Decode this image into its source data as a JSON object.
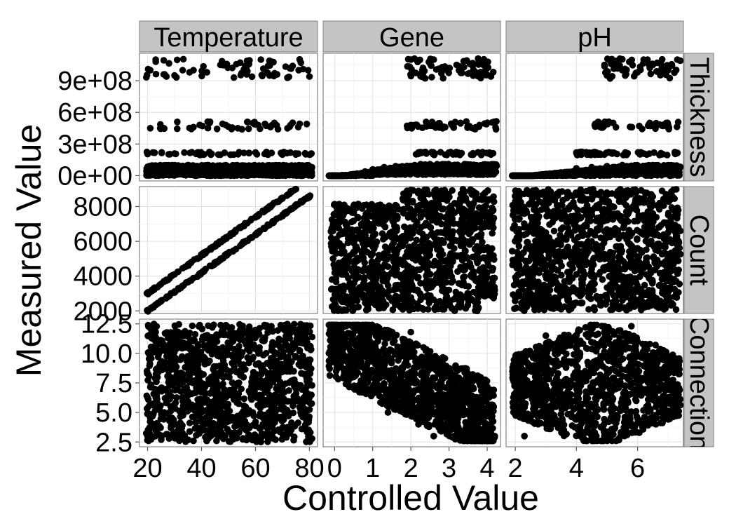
{
  "chart_data": {
    "type": "scatter",
    "layout": "facet_grid",
    "xlabel": "Controlled Value",
    "ylabel": "Measured Value",
    "columns": [
      {
        "name": "Temperature",
        "xlim": [
          17,
          83
        ],
        "ticks": [
          20,
          40,
          60,
          80
        ],
        "tick_labels": [
          "20",
          "40",
          "60",
          "80"
        ]
      },
      {
        "name": "Gene",
        "xlim": [
          -0.3,
          4.35
        ],
        "ticks": [
          0,
          1,
          2,
          3,
          4
        ],
        "tick_labels": [
          "0",
          "1",
          "2",
          "3",
          "4"
        ]
      },
      {
        "name": "pH",
        "xlim": [
          1.7,
          7.5
        ],
        "ticks": [
          2,
          4,
          6
        ],
        "tick_labels": [
          "2",
          "4",
          "6"
        ]
      }
    ],
    "rows": [
      {
        "name": "Thickness",
        "ylim": [
          -50000000,
          1160000000
        ],
        "ticks": [
          0,
          300000000,
          600000000,
          900000000
        ],
        "tick_labels": [
          "0e+00",
          "3e+08",
          "6e+08",
          "9e+08"
        ]
      },
      {
        "name": "Count",
        "ylim": [
          1850,
          9150
        ],
        "ticks": [
          2000,
          4000,
          6000,
          8000
        ],
        "tick_labels": [
          "2000",
          "4000",
          "6000",
          "8000"
        ]
      },
      {
        "name": "Connection",
        "ylim": [
          2.1,
          12.9
        ],
        "ticks": [
          2.5,
          5.0,
          7.5,
          10.0,
          12.5
        ],
        "tick_labels": [
          "2.5",
          "5.0",
          "7.5",
          "10.0",
          "12.5"
        ]
      }
    ],
    "panels": [
      {
        "row": "Thickness",
        "column": "Temperature",
        "description": "horizontal bands",
        "points": [
          [
            21,
            1000000000.0
          ],
          [
            23,
            1100000000.0
          ],
          [
            26,
            960000000.0
          ],
          [
            30,
            950000000.0
          ],
          [
            33,
            1000000000.0
          ],
          [
            37,
            1000000000.0
          ],
          [
            42,
            980000000.0
          ],
          [
            47,
            1050000000.0
          ],
          [
            52,
            930000000.0
          ],
          [
            57,
            990000000.0
          ],
          [
            62,
            1100000000.0
          ],
          [
            68,
            960000000.0
          ],
          [
            72,
            930000000.0
          ],
          [
            76,
            1000000000.0
          ],
          [
            80,
            940000000.0
          ],
          [
            21,
            450000000.0
          ],
          [
            26,
            450000000.0
          ],
          [
            31,
            510000000.0
          ],
          [
            37,
            460000000.0
          ],
          [
            43,
            500000000.0
          ],
          [
            49,
            480000000.0
          ],
          [
            55,
            440000000.0
          ],
          [
            61,
            480000000.0
          ],
          [
            67,
            500000000.0
          ],
          [
            73,
            480000000.0
          ],
          [
            79,
            490000000.0
          ],
          [
            22,
            220000000.0
          ],
          [
            30,
            210000000.0
          ],
          [
            40,
            200000000.0
          ],
          [
            52,
            200000000.0
          ],
          [
            60,
            220000000.0
          ],
          [
            70,
            200000000.0
          ],
          [
            80,
            200000000.0
          ],
          [
            20,
            80000000.0
          ],
          [
            25,
            60000000.0
          ],
          [
            30,
            90000000.0
          ],
          [
            35,
            40000000.0
          ],
          [
            40,
            70000000.0
          ],
          [
            45,
            10000000.0
          ],
          [
            50,
            80000000.0
          ],
          [
            55,
            50000000.0
          ],
          [
            60,
            90000000.0
          ],
          [
            65,
            30000000.0
          ],
          [
            70,
            70000000.0
          ],
          [
            75,
            50000000.0
          ],
          [
            80,
            80000000.0
          ],
          [
            22,
            20000000.0
          ],
          [
            38,
            0
          ],
          [
            57,
            10000000.0
          ],
          [
            77,
            0
          ]
        ]
      },
      {
        "row": "Thickness",
        "column": "Gene",
        "description": "rises with gene",
        "points": [
          [
            -0.1,
            0
          ],
          [
            0.2,
            5000000.0
          ],
          [
            0.5,
            10000000.0
          ],
          [
            0.8,
            40000000.0
          ],
          [
            1.0,
            60000000.0
          ],
          [
            1.3,
            80000000.0
          ],
          [
            1.6,
            90000000.0
          ],
          [
            1.8,
            70000000.0
          ],
          [
            2.1,
            100000000.0
          ],
          [
            2.5,
            80000000.0
          ],
          [
            3.0,
            100000000.0
          ],
          [
            3.5,
            90000000.0
          ],
          [
            4.0,
            100000000.0
          ],
          [
            4.2,
            80000000.0
          ],
          [
            2.2,
            220000000.0
          ],
          [
            2.6,
            200000000.0
          ],
          [
            3.0,
            220000000.0
          ],
          [
            3.6,
            200000000.0
          ],
          [
            4.1,
            200000000.0
          ],
          [
            2.0,
            480000000.0
          ],
          [
            2.4,
            510000000.0
          ],
          [
            2.9,
            460000000.0
          ],
          [
            3.3,
            500000000.0
          ],
          [
            3.8,
            480000000.0
          ],
          [
            4.2,
            500000000.0
          ],
          [
            2.0,
            1100000000.0
          ],
          [
            2.3,
            1000000000.0
          ],
          [
            2.8,
            970000000.0
          ],
          [
            3.2,
            1050000000.0
          ],
          [
            3.7,
            980000000.0
          ],
          [
            4.1,
            940000000.0
          ],
          [
            2.6,
            1100000000.0
          ],
          [
            3.9,
            1050000000.0
          ]
        ]
      },
      {
        "row": "Thickness",
        "column": "pH",
        "description": "rises with pH",
        "points": [
          [
            2.0,
            0
          ],
          [
            2.5,
            0
          ],
          [
            3.0,
            10000000.0
          ],
          [
            3.5,
            30000000.0
          ],
          [
            4.0,
            70000000.0
          ],
          [
            4.5,
            80000000.0
          ],
          [
            5.0,
            90000000.0
          ],
          [
            5.5,
            100000000.0
          ],
          [
            6.0,
            90000000.0
          ],
          [
            6.5,
            100000000.0
          ],
          [
            7.0,
            90000000.0
          ],
          [
            7.3,
            80000000.0
          ],
          [
            4.0,
            220000000.0
          ],
          [
            4.8,
            200000000.0
          ],
          [
            5.6,
            220000000.0
          ],
          [
            6.3,
            200000000.0
          ],
          [
            4.6,
            480000000.0
          ],
          [
            5.2,
            500000000.0
          ],
          [
            5.8,
            460000000.0
          ],
          [
            6.4,
            500000000.0
          ],
          [
            7.0,
            480000000.0
          ],
          [
            5.0,
            950000000.0
          ],
          [
            5.5,
            1000000000.0
          ],
          [
            6.0,
            980000000.0
          ],
          [
            6.5,
            1050000000.0
          ],
          [
            7.0,
            1000000000.0
          ],
          [
            7.3,
            1100000000.0
          ],
          [
            6.2,
            1100000000.0
          ]
        ]
      },
      {
        "row": "Count",
        "column": "Temperature",
        "description": "two parallel linear bands",
        "points": [
          [
            20,
            2000
          ],
          [
            25,
            2550
          ],
          [
            30,
            3100
          ],
          [
            35,
            3650
          ],
          [
            40,
            4200
          ],
          [
            45,
            4750
          ],
          [
            50,
            5300
          ],
          [
            55,
            5850
          ],
          [
            60,
            6400
          ],
          [
            65,
            6950
          ],
          [
            70,
            7500
          ],
          [
            75,
            8050
          ],
          [
            80,
            8600
          ],
          [
            20,
            3000
          ],
          [
            25,
            3550
          ],
          [
            30,
            4100
          ],
          [
            35,
            4650
          ],
          [
            40,
            5200
          ],
          [
            45,
            5750
          ],
          [
            50,
            6300
          ],
          [
            55,
            6850
          ],
          [
            60,
            7400
          ],
          [
            65,
            7950
          ],
          [
            70,
            8500
          ],
          [
            75,
            9000
          ]
        ]
      },
      {
        "row": "Count",
        "column": "Gene",
        "description": "block of scattered points",
        "points": [
          [
            0.1,
            2100
          ],
          [
            0.3,
            7900
          ],
          [
            0.6,
            5000
          ],
          [
            0.9,
            3000
          ],
          [
            1.2,
            8100
          ],
          [
            1.5,
            4200
          ],
          [
            1.8,
            6300
          ],
          [
            2.0,
            2300
          ],
          [
            2.2,
            8900
          ],
          [
            2.5,
            5200
          ],
          [
            2.8,
            7000
          ],
          [
            3.0,
            3200
          ],
          [
            3.3,
            6500
          ],
          [
            3.6,
            8700
          ],
          [
            3.9,
            4500
          ],
          [
            4.1,
            7400
          ],
          [
            0.4,
            3600
          ],
          [
            1.0,
            6900
          ],
          [
            1.6,
            2600
          ],
          [
            2.4,
            3700
          ],
          [
            3.1,
            4900
          ],
          [
            3.7,
            2500
          ],
          [
            4.0,
            8400
          ],
          [
            2.7,
            8000
          ]
        ]
      },
      {
        "row": "Count",
        "column": "pH",
        "description": "cloud of scattered points",
        "points": [
          [
            2.0,
            8300
          ],
          [
            2.5,
            3000
          ],
          [
            3.0,
            6500
          ],
          [
            3.5,
            2100
          ],
          [
            4.0,
            7200
          ],
          [
            4.5,
            4400
          ],
          [
            5.0,
            8800
          ],
          [
            5.5,
            2600
          ],
          [
            6.0,
            5600
          ],
          [
            6.5,
            7600
          ],
          [
            7.0,
            3900
          ],
          [
            7.3,
            6100
          ],
          [
            2.2,
            5000
          ],
          [
            3.2,
            8600
          ],
          [
            4.2,
            3500
          ],
          [
            4.8,
            6200
          ],
          [
            5.8,
            3000
          ],
          [
            6.8,
            8900
          ],
          [
            3.8,
            5400
          ],
          [
            5.2,
            4700
          ]
        ]
      },
      {
        "row": "Connection",
        "column": "Temperature",
        "description": "uniform noise",
        "points": [
          [
            20,
            3.0
          ],
          [
            23,
            11.8
          ],
          [
            26,
            7.0
          ],
          [
            29,
            4.5
          ],
          [
            32,
            10.5
          ],
          [
            35,
            5.5
          ],
          [
            38,
            9.0
          ],
          [
            41,
            3.5
          ],
          [
            44,
            12.2
          ],
          [
            47,
            6.3
          ],
          [
            50,
            8.0
          ],
          [
            53,
            4.0
          ],
          [
            56,
            11.0
          ],
          [
            59,
            5.0
          ],
          [
            62,
            7.7
          ],
          [
            65,
            3.2
          ],
          [
            68,
            10.0
          ],
          [
            71,
            6.0
          ],
          [
            74,
            12.3
          ],
          [
            77,
            4.8
          ],
          [
            80,
            8.6
          ],
          [
            28,
            2.8
          ],
          [
            46,
            9.8
          ],
          [
            64,
            5.8
          ],
          [
            79,
            11.2
          ]
        ]
      },
      {
        "row": "Connection",
        "column": "Gene",
        "description": "decreasing with gene",
        "points": [
          [
            -0.1,
            11.5
          ],
          [
            0.1,
            9.5
          ],
          [
            0.3,
            12.3
          ],
          [
            0.5,
            8.0
          ],
          [
            0.7,
            10.5
          ],
          [
            0.9,
            11.8
          ],
          [
            1.0,
            7.0
          ],
          [
            1.2,
            9.5
          ],
          [
            1.4,
            5.0
          ],
          [
            1.6,
            8.5
          ],
          [
            1.8,
            6.0
          ],
          [
            2.0,
            11.8
          ],
          [
            2.2,
            4.0
          ],
          [
            2.4,
            6.5
          ],
          [
            2.6,
            3.0
          ],
          [
            2.8,
            7.5
          ],
          [
            3.0,
            5.0
          ],
          [
            3.2,
            3.5
          ],
          [
            3.5,
            6.8
          ],
          [
            3.8,
            4.2
          ],
          [
            4.0,
            7.2
          ],
          [
            4.2,
            3.0
          ],
          [
            2.5,
            5.5
          ],
          [
            3.3,
            2.8
          ]
        ]
      },
      {
        "row": "Connection",
        "column": "pH",
        "description": "cloud",
        "points": [
          [
            2.0,
            6.0
          ],
          [
            2.3,
            3.0
          ],
          [
            2.7,
            8.5
          ],
          [
            3.0,
            11.5
          ],
          [
            3.3,
            4.5
          ],
          [
            3.6,
            9.5
          ],
          [
            4.0,
            6.5
          ],
          [
            4.3,
            12.2
          ],
          [
            4.6,
            3.3
          ],
          [
            5.0,
            10.0
          ],
          [
            5.3,
            7.0
          ],
          [
            5.7,
            5.0
          ],
          [
            6.0,
            11.0
          ],
          [
            6.3,
            8.0
          ],
          [
            6.6,
            4.0
          ],
          [
            7.0,
            9.0
          ],
          [
            7.3,
            6.0
          ],
          [
            4.5,
            2.8
          ],
          [
            3.5,
            7.5
          ],
          [
            5.8,
            12.3
          ]
        ]
      }
    ]
  }
}
